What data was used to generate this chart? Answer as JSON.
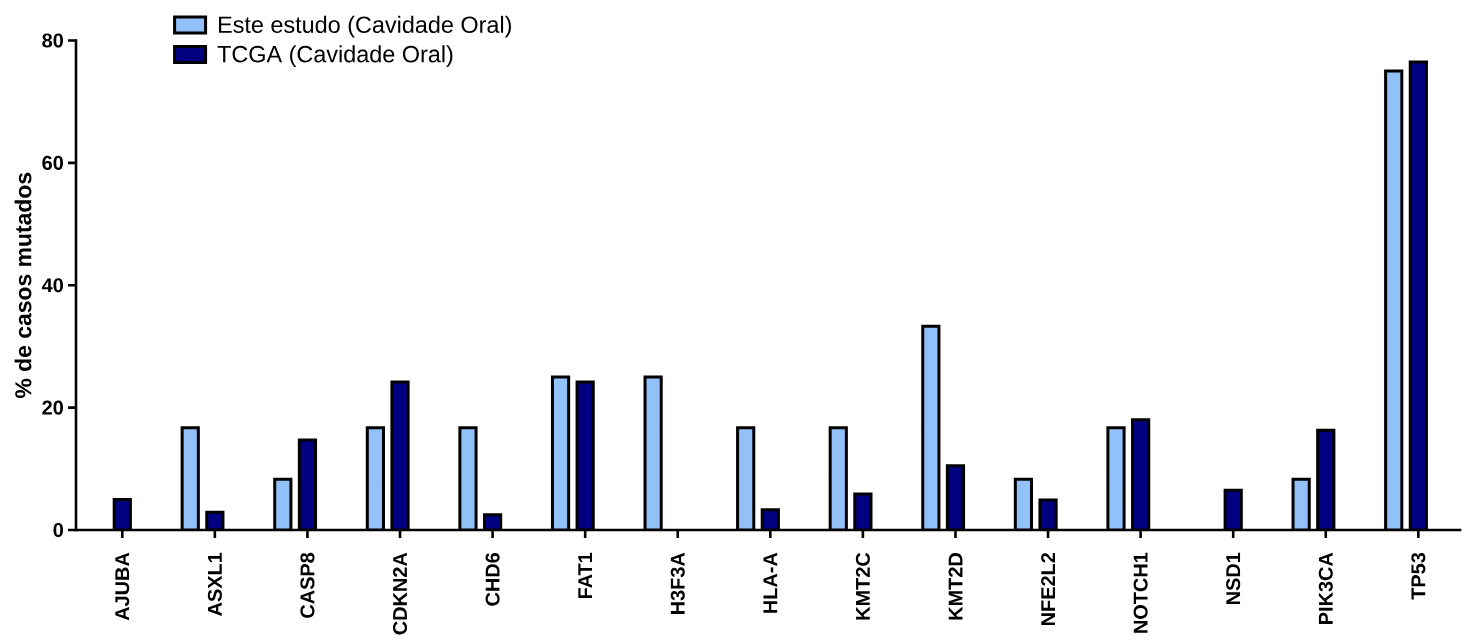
{
  "chart_data": {
    "type": "bar",
    "ylabel": "% de casos mutados",
    "categories": [
      "AJUBA",
      "ASXL1",
      "CASP8",
      "CDKN2A",
      "CHD6",
      "FAT1",
      "H3F3A",
      "HLA-A",
      "KMT2C",
      "KMT2D",
      "NFE2L2",
      "NOTCH1",
      "NSD1",
      "PIK3CA",
      "TP53"
    ],
    "series": [
      {
        "name": "Este estudo (Cavidade Oral)",
        "color": "#92c0f8",
        "values": [
          null,
          16.7,
          8.3,
          16.7,
          16.7,
          25.0,
          25.0,
          16.7,
          16.7,
          33.3,
          8.3,
          16.7,
          null,
          8.3,
          75.0
        ]
      },
      {
        "name": "TCGA (Cavidade Oral)",
        "color": "#000080",
        "values": [
          5.0,
          2.9,
          14.7,
          24.2,
          2.5,
          24.2,
          null,
          3.3,
          5.9,
          10.5,
          4.9,
          18.0,
          6.5,
          16.3,
          76.5
        ]
      }
    ],
    "ylim": [
      0,
      80
    ],
    "yticks": [
      0,
      20,
      40,
      60,
      80
    ],
    "legend": "top left"
  }
}
